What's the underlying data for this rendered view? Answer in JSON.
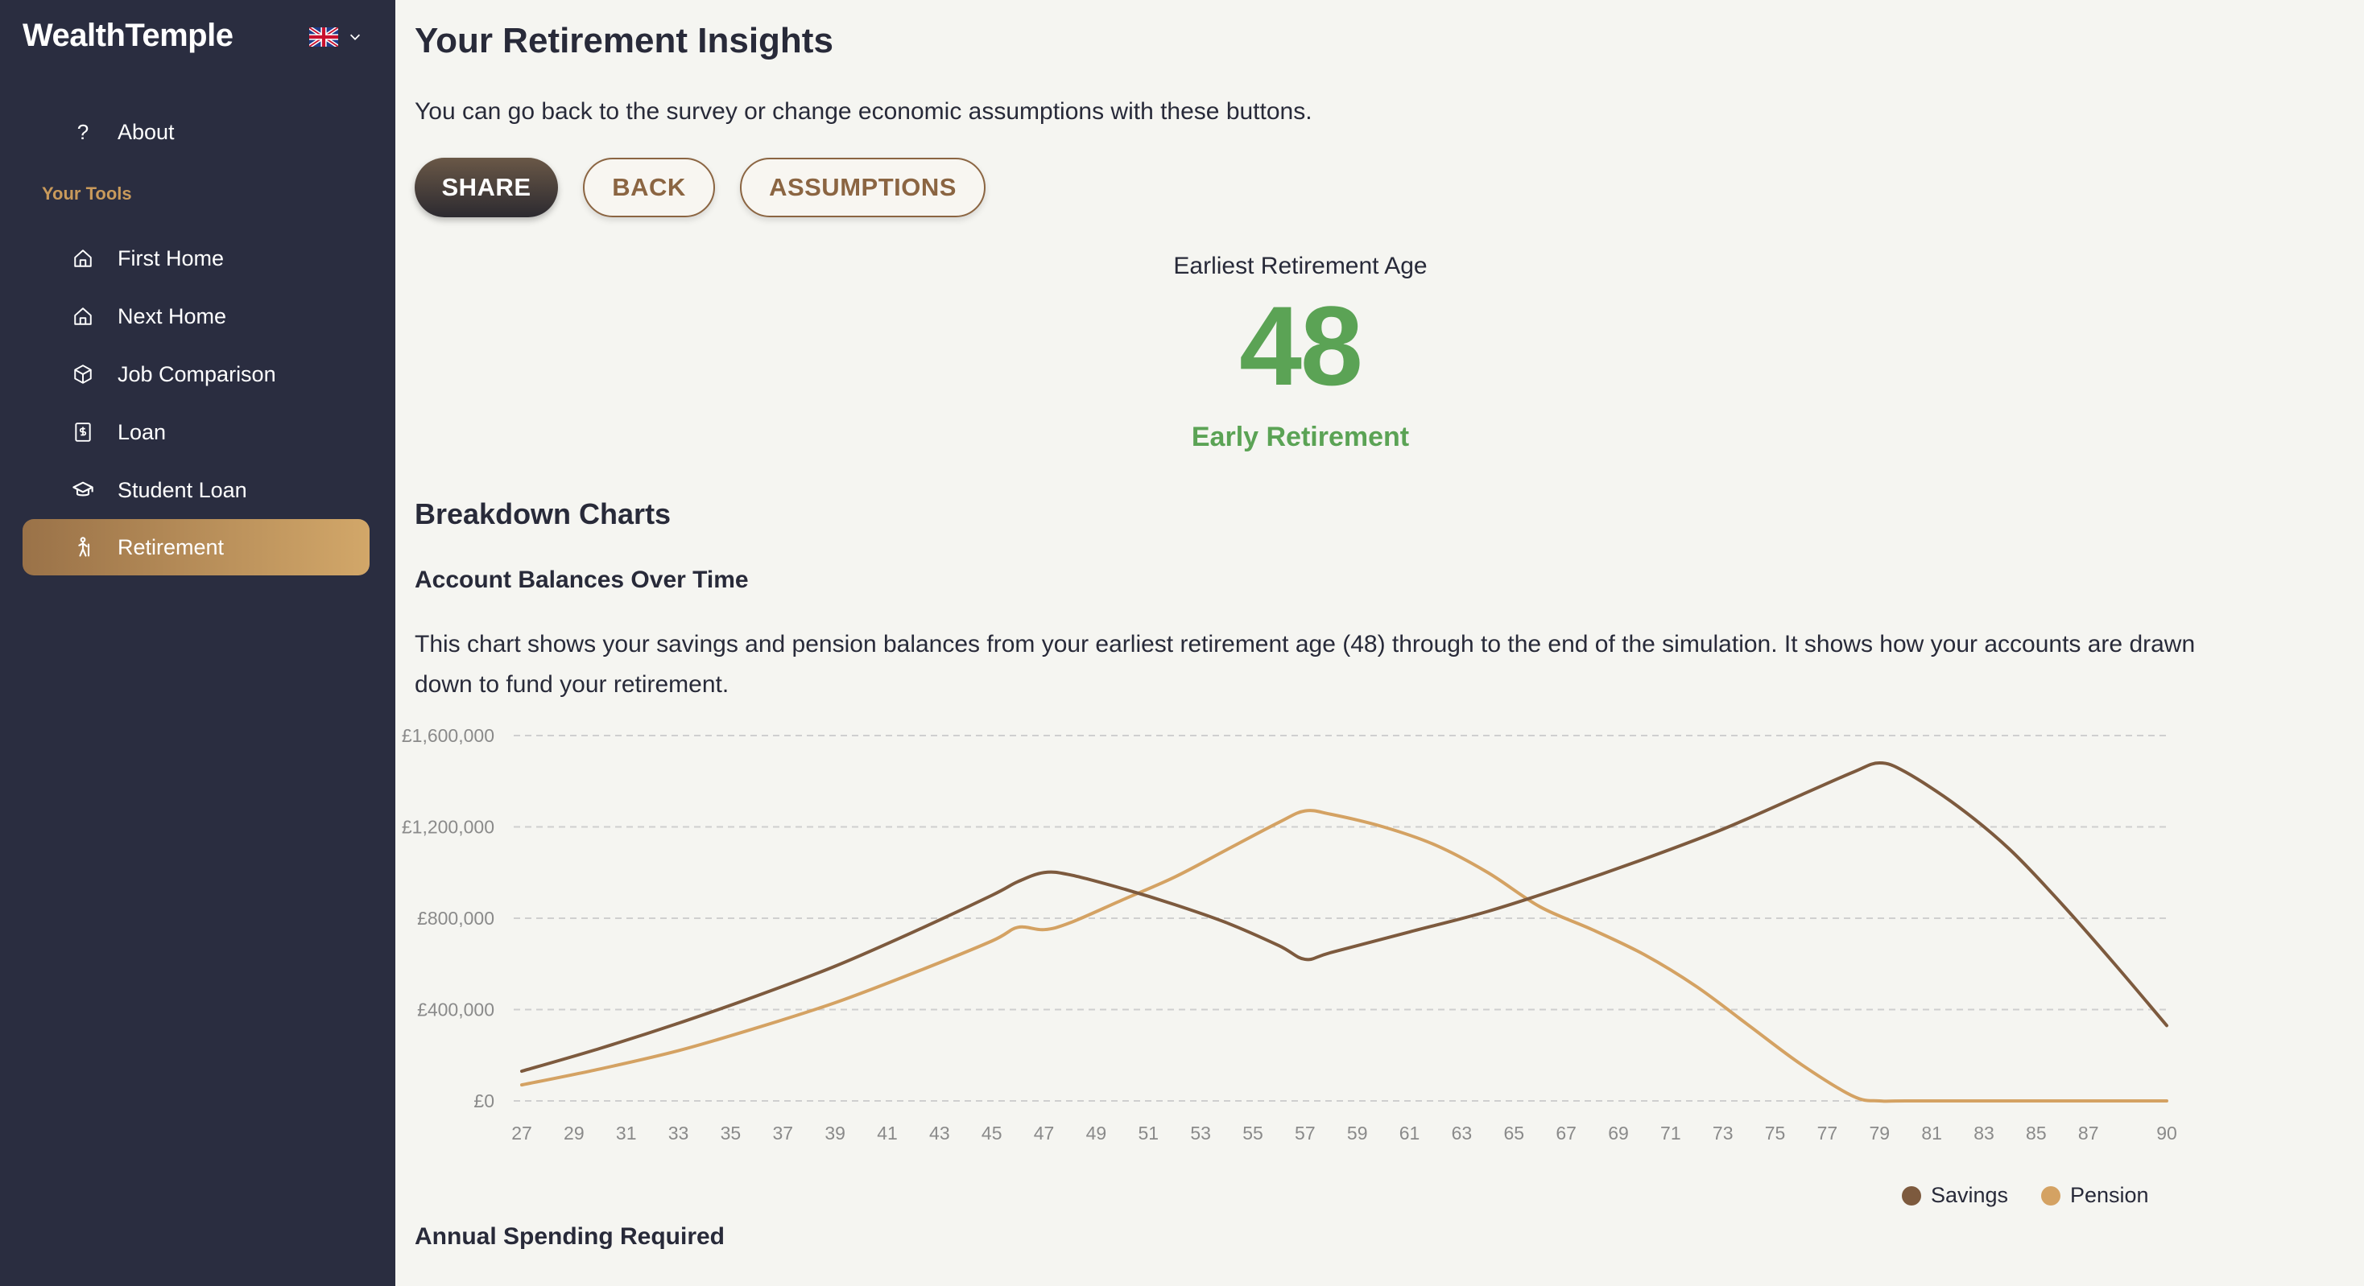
{
  "app": {
    "brand": "WealthTemple"
  },
  "sidebar": {
    "about": "About",
    "section_label": "Your Tools",
    "items": [
      {
        "label": "First Home",
        "icon": "home-icon"
      },
      {
        "label": "Next Home",
        "icon": "home-icon"
      },
      {
        "label": "Job Comparison",
        "icon": "cube-icon"
      },
      {
        "label": "Loan",
        "icon": "document-dollar-icon"
      },
      {
        "label": "Student Loan",
        "icon": "graduation-cap-icon"
      },
      {
        "label": "Retirement",
        "icon": "person-walking-icon",
        "active": true
      }
    ]
  },
  "header": {
    "title": "Your Retirement Insights",
    "intro": "You can go back to the survey or change economic assumptions with these buttons."
  },
  "actions": {
    "share": "SHARE",
    "back": "BACK",
    "assumptions": "ASSUMPTIONS"
  },
  "result": {
    "label": "Earliest Retirement Age",
    "age": "48",
    "status": "Early Retirement"
  },
  "breakdown": {
    "title": "Breakdown Charts",
    "chart_title": "Account Balances Over Time",
    "chart_description": "This chart shows your savings and pension balances from your earliest retirement age (48) through to the end of the simulation. It shows how your accounts are drawn down to fund your retirement.",
    "next_title": "Annual Spending Required"
  },
  "colors": {
    "savings": "#7d5a3e",
    "pension": "#d4a263",
    "accent_green": "#5ba355",
    "sidebar_bg": "#2a2d40"
  },
  "chart_data": {
    "type": "line",
    "title": "",
    "xlabel": "",
    "ylabel": "",
    "ylim": [
      0,
      1600000
    ],
    "xlim": [
      27,
      90
    ],
    "y_ticks": [
      "£0",
      "£400,000",
      "£800,000",
      "£1,200,000",
      "£1,600,000"
    ],
    "x_ticks": [
      27,
      29,
      31,
      33,
      35,
      37,
      39,
      41,
      43,
      45,
      47,
      49,
      51,
      53,
      55,
      57,
      59,
      61,
      63,
      65,
      67,
      69,
      71,
      73,
      75,
      77,
      79,
      81,
      83,
      85,
      87,
      90
    ],
    "grid": true,
    "legend": "bottom-right",
    "series": [
      {
        "name": "Savings",
        "x": [
          27,
          30,
          33,
          36,
          39,
          42,
          45,
          46,
          47,
          48,
          50,
          52,
          54,
          56,
          57,
          58,
          61,
          64,
          67,
          70,
          73,
          76,
          78,
          79,
          80,
          82,
          84,
          86,
          88,
          90
        ],
        "values": [
          130000,
          230000,
          340000,
          460000,
          590000,
          740000,
          900000,
          960000,
          1000000,
          990000,
          930000,
          860000,
          780000,
          680000,
          620000,
          650000,
          740000,
          830000,
          940000,
          1060000,
          1190000,
          1340000,
          1440000,
          1480000,
          1440000,
          1290000,
          1100000,
          860000,
          600000,
          330000
        ]
      },
      {
        "name": "Pension",
        "x": [
          27,
          30,
          33,
          36,
          39,
          42,
          45,
          46,
          47,
          48,
          50,
          52,
          54,
          56,
          57,
          58,
          60,
          62,
          64,
          66,
          68,
          70,
          72,
          74,
          76,
          78,
          79,
          80,
          85,
          90
        ],
        "values": [
          70000,
          140000,
          220000,
          320000,
          430000,
          560000,
          700000,
          760000,
          750000,
          780000,
          880000,
          980000,
          1100000,
          1220000,
          1270000,
          1255000,
          1200000,
          1120000,
          1000000,
          850000,
          750000,
          640000,
          500000,
          330000,
          160000,
          20000,
          0,
          0,
          0,
          0
        ]
      }
    ]
  }
}
